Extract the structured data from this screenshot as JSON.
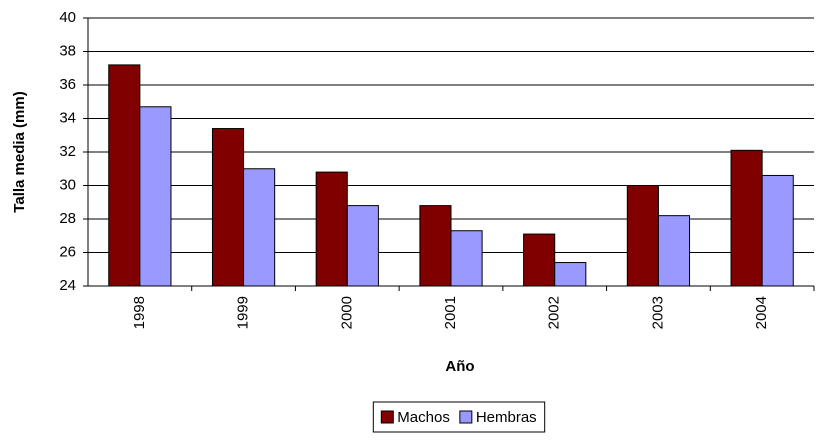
{
  "chart_data": {
    "type": "bar",
    "y_label": "Talla media (mm)",
    "x_label": "Año",
    "categories": [
      "1998",
      "1999",
      "2000",
      "2001",
      "2002",
      "2003",
      "2004"
    ],
    "series": [
      {
        "name": "Machos",
        "color": "#800000",
        "values": [
          37.2,
          33.4,
          30.8,
          28.8,
          27.1,
          30.0,
          32.1
        ]
      },
      {
        "name": "Hembras",
        "color": "#9999ff",
        "values": [
          34.7,
          31.0,
          28.8,
          27.3,
          25.4,
          28.2,
          30.6
        ]
      }
    ],
    "ylim": [
      24,
      40
    ],
    "yticks": [
      24,
      26,
      28,
      30,
      32,
      34,
      36,
      38,
      40
    ],
    "grid": true,
    "legend": "bottom"
  }
}
